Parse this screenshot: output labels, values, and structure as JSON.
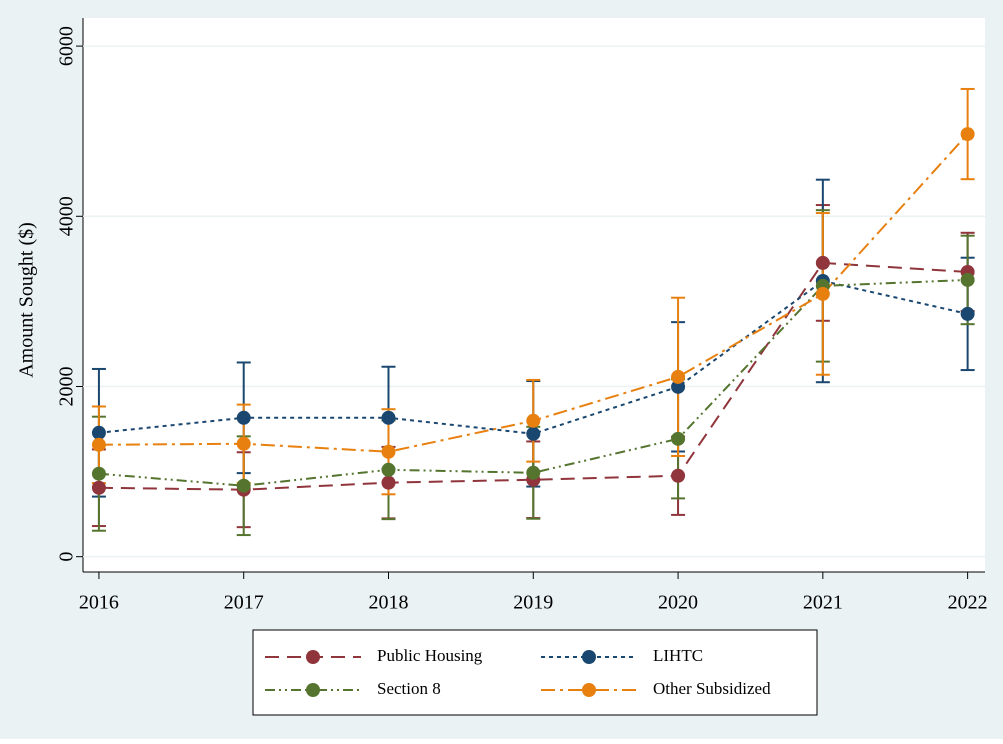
{
  "chart_data": {
    "type": "line",
    "ylabel": "Amount Sought ($)",
    "x": [
      2016,
      2017,
      2018,
      2019,
      2020,
      2021,
      2022
    ],
    "xlim": [
      2015.89,
      2022.12
    ],
    "xticks": [
      2016,
      2017,
      2018,
      2019,
      2020,
      2021,
      2022
    ],
    "ylim": [
      -180,
      6330
    ],
    "yticks": [
      0,
      2000,
      4000,
      6000
    ],
    "grid": true,
    "series": [
      {
        "name": "Public Housing",
        "color": "#90353b",
        "dash": "14 8",
        "values": [
          810,
          787,
          870,
          904,
          951,
          3452,
          3346
        ],
        "errors": [
          450,
          440,
          420,
          450,
          460,
          680,
          460
        ]
      },
      {
        "name": "LIHTC",
        "color": "#1a476f",
        "dash": "4 4",
        "values": [
          1456,
          1632,
          1632,
          1444,
          1996,
          3240,
          2853
        ],
        "errors": [
          750,
          650,
          600,
          620,
          760,
          1190,
          660
        ]
      },
      {
        "name": "Section 8",
        "color": "#55752f",
        "dash": "10 4 2 4 2 4",
        "values": [
          975,
          834,
          1021,
          986,
          1385,
          3182,
          3252
        ],
        "errors": [
          670,
          580,
          580,
          540,
          700,
          890,
          520
        ]
      },
      {
        "name": "Other Subsidized",
        "color": "#e8800f",
        "dash": "14 5 3 5",
        "values": [
          1315,
          1327,
          1233,
          1597,
          2113,
          3088,
          4966
        ],
        "errors": [
          450,
          460,
          500,
          480,
          930,
          950,
          530
        ]
      }
    ]
  }
}
